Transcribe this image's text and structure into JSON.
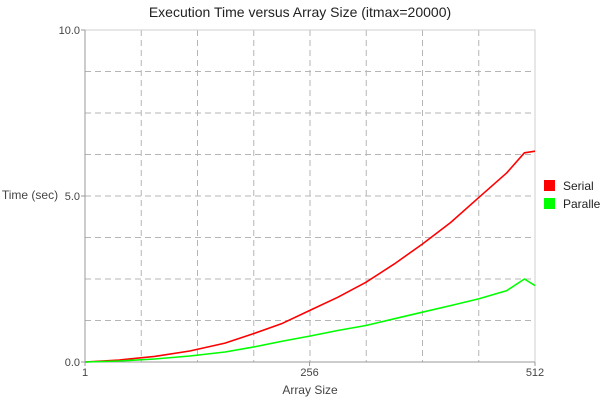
{
  "chart_data": {
    "type": "line",
    "title": "Execution Time versus Array Size (itmax=20000)",
    "xlabel": "Array Size",
    "ylabel": "Time (sec)",
    "xlim": [
      1,
      512
    ],
    "ylim": [
      0,
      10
    ],
    "x_ticks": [
      {
        "value": 1,
        "label": "1"
      },
      {
        "value": 256,
        "label": "256"
      },
      {
        "value": 512,
        "label": "512"
      }
    ],
    "y_ticks": [
      {
        "value": 0,
        "label": "0.0"
      },
      {
        "value": 5,
        "label": "5.0"
      },
      {
        "value": 10,
        "label": "10.0"
      }
    ],
    "grid": true,
    "legend_position": "right",
    "x": [
      1,
      40,
      80,
      120,
      160,
      192,
      224,
      256,
      288,
      320,
      352,
      384,
      416,
      448,
      480,
      500,
      512
    ],
    "series": [
      {
        "name": "Serial",
        "color": "#ff0000",
        "values": [
          0.0,
          0.06,
          0.17,
          0.33,
          0.57,
          0.85,
          1.15,
          1.55,
          1.95,
          2.4,
          2.95,
          3.55,
          4.2,
          4.95,
          5.7,
          6.3,
          6.35
        ]
      },
      {
        "name": "Parallel",
        "color": "#00ff00",
        "values": [
          0.0,
          0.03,
          0.09,
          0.18,
          0.3,
          0.45,
          0.62,
          0.78,
          0.95,
          1.1,
          1.3,
          1.5,
          1.7,
          1.9,
          2.15,
          2.5,
          2.3
        ]
      }
    ]
  }
}
